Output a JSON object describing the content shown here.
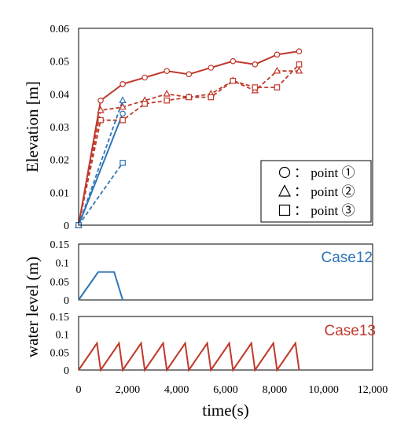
{
  "chart_data": [
    {
      "type": "line",
      "ylabel": "Elevation [m]",
      "ylim": [
        0,
        0.06
      ],
      "yticks": [
        0,
        0.01,
        0.02,
        0.03,
        0.04,
        0.05,
        0.06
      ],
      "ytick_labels": [
        "0",
        "0.01",
        "0.02",
        "0.03",
        "0.04",
        "0.05",
        "0.06"
      ],
      "xlim": [
        0,
        12000
      ],
      "legend": {
        "placement": "bottom-right",
        "entries": [
          {
            "marker": "circle",
            "label": "： point ①"
          },
          {
            "marker": "triangle",
            "label": "： point ②"
          },
          {
            "marker": "square",
            "label": "： point ③"
          }
        ]
      },
      "series": [
        {
          "group": "Case13",
          "marker": "circle",
          "style": "solid",
          "color": "#c0392b",
          "x": [
            0,
            900,
            1800,
            2700,
            3600,
            4500,
            5400,
            6300,
            7200,
            8100,
            9000
          ],
          "y": [
            0,
            0.038,
            0.043,
            0.045,
            0.047,
            0.046,
            0.048,
            0.05,
            0.049,
            0.052,
            0.053
          ]
        },
        {
          "group": "Case13",
          "marker": "triangle",
          "style": "dashed",
          "color": "#c0392b",
          "x": [
            0,
            900,
            1800,
            2700,
            3600,
            4500,
            5400,
            6300,
            7200,
            8100,
            9000
          ],
          "y": [
            0,
            0.035,
            0.036,
            0.038,
            0.04,
            0.039,
            0.04,
            0.044,
            0.041,
            0.047,
            0.047
          ]
        },
        {
          "group": "Case13",
          "marker": "square",
          "style": "dashed",
          "color": "#c0392b",
          "x": [
            0,
            900,
            1800,
            2700,
            3600,
            4500,
            5400,
            6300,
            7200,
            8100,
            9000
          ],
          "y": [
            0,
            0.032,
            0.032,
            0.037,
            0.038,
            0.039,
            0.039,
            0.044,
            0.042,
            0.042,
            0.049
          ]
        },
        {
          "group": "Case12",
          "marker": "circle",
          "style": "solid",
          "color": "#2e75b6",
          "x": [
            0,
            1800
          ],
          "y": [
            0,
            0.034
          ]
        },
        {
          "group": "Case12",
          "marker": "triangle",
          "style": "dashed",
          "color": "#2e75b6",
          "x": [
            0,
            1800
          ],
          "y": [
            0,
            0.038
          ]
        },
        {
          "group": "Case12",
          "marker": "square",
          "style": "dashed",
          "color": "#2e75b6",
          "x": [
            0,
            1800
          ],
          "y": [
            0,
            0.019
          ]
        }
      ]
    },
    {
      "type": "line",
      "label": "Case12",
      "color": "#2e75b6",
      "ylim": [
        0,
        0.15
      ],
      "yticks": [
        0,
        0.05,
        0.1,
        0.15
      ],
      "ytick_labels": [
        "0",
        "0.05",
        "0.1",
        "0.15"
      ],
      "xlim": [
        0,
        12000
      ],
      "series": [
        {
          "x": [
            0,
            800,
            1450,
            1800
          ],
          "y": [
            0,
            0.075,
            0.075,
            0
          ]
        }
      ]
    },
    {
      "type": "line",
      "label": "Case13",
      "color": "#c0392b",
      "ylim": [
        0,
        0.15
      ],
      "yticks": [
        0,
        0.05,
        0.1,
        0.15
      ],
      "ytick_labels": [
        "0",
        "0.05",
        "0.1",
        "0.15"
      ],
      "xlim": [
        0,
        12000
      ],
      "series": [
        {
          "x": [
            0,
            750,
            900,
            1650,
            1800,
            2550,
            2700,
            3450,
            3600,
            4350,
            4500,
            5250,
            5400,
            6150,
            6300,
            7050,
            7200,
            7950,
            8100,
            8850,
            9000
          ],
          "y": [
            0,
            0.075,
            0,
            0.075,
            0,
            0.075,
            0,
            0.075,
            0,
            0.075,
            0,
            0.075,
            0,
            0.075,
            0,
            0.075,
            0,
            0.075,
            0,
            0.075,
            0
          ]
        }
      ]
    }
  ],
  "shared": {
    "xticks": [
      0,
      2000,
      4000,
      6000,
      8000,
      10000,
      12000
    ],
    "xtick_labels": [
      "0",
      "2,000",
      "4,000",
      "6,000",
      "8,000",
      "10,000",
      "12,000"
    ],
    "xlabel": "time(s)",
    "lower_ylabel": "water level (m)"
  }
}
